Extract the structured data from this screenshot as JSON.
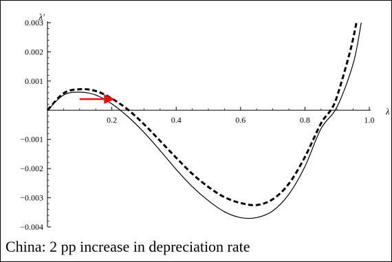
{
  "caption": "China: 2 pp increase in depreciation rate",
  "colors": {
    "arrow": "#e8120c",
    "curves": "#000000"
  },
  "chart_data": {
    "type": "line",
    "title": "",
    "xlabel": "λ",
    "ylabel": "λ′",
    "xlim": [
      0,
      1.0
    ],
    "ylim": [
      -0.004,
      0.003
    ],
    "x_ticks": [
      0.2,
      0.4,
      0.6,
      0.8,
      1.0
    ],
    "x_tick_labels": [
      "0.2",
      "0.4",
      "0.6",
      "0.8",
      "1.0"
    ],
    "y_ticks": [
      -0.004,
      -0.003,
      -0.002,
      -0.001,
      0.001,
      0.002,
      0.003
    ],
    "y_tick_labels": [
      "−0.004",
      "−0.003",
      "−0.002",
      "−0.001",
      "0.001",
      "0.002",
      "0.003"
    ],
    "grid": false,
    "series": [
      {
        "style": "solid",
        "x": [
          0,
          0.05,
          0.1,
          0.15,
          0.2,
          0.25,
          0.3,
          0.35,
          0.4,
          0.45,
          0.5,
          0.55,
          0.6,
          0.65,
          0.7,
          0.75,
          0.8,
          0.85,
          0.9,
          0.95,
          0.975
        ],
        "y": [
          0,
          0.00052,
          0.00062,
          0.00052,
          0.00022,
          -0.00022,
          -0.00076,
          -0.00138,
          -0.00203,
          -0.00262,
          -0.0031,
          -0.00348,
          -0.00368,
          -0.00368,
          -0.00345,
          -0.00288,
          -0.00193,
          -0.00063,
          0.00012,
          0.0016,
          0.003
        ]
      },
      {
        "style": "dashed",
        "x": [
          0,
          0.05,
          0.1,
          0.15,
          0.2,
          0.25,
          0.3,
          0.35,
          0.4,
          0.45,
          0.5,
          0.55,
          0.6,
          0.65,
          0.7,
          0.75,
          0.8,
          0.85,
          0.88,
          0.9,
          0.94,
          0.96
        ],
        "y": [
          0,
          0.00058,
          0.00072,
          0.00066,
          0.0004,
          2e-05,
          -0.00048,
          -0.00105,
          -0.00163,
          -0.00218,
          -0.00263,
          -0.00298,
          -0.00318,
          -0.00325,
          -0.00305,
          -0.00252,
          -0.0016,
          -0.00045,
          0.0,
          0.00048,
          0.002,
          0.003
        ]
      }
    ],
    "annotations": [
      {
        "type": "arrow",
        "from": [
          0.1,
          0.00038
        ],
        "to": [
          0.21,
          0.00038
        ]
      }
    ]
  }
}
